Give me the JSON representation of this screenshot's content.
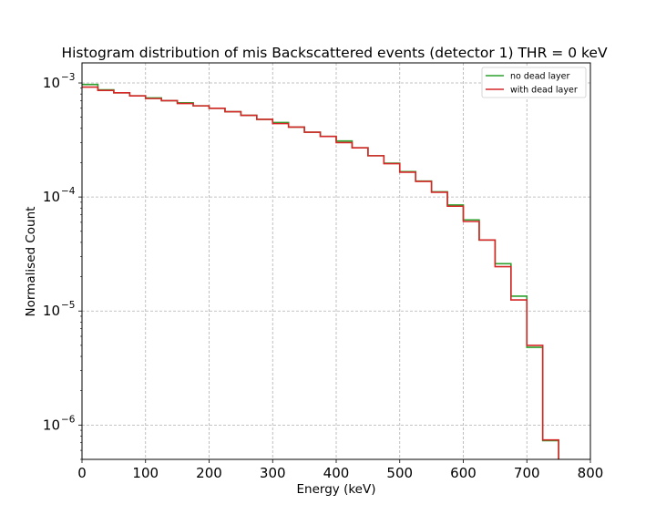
{
  "chart_data": {
    "type": "line",
    "title": "Histogram distribution of mis Backscattered events (detector 1) THR = 0 keV",
    "xlabel": "Energy (keV)",
    "ylabel": "Normalised Count",
    "xlim": [
      0,
      800
    ],
    "ylim": [
      5e-07,
      0.0015
    ],
    "yscale": "log",
    "grid": true,
    "legend_position": "top-right",
    "x_ticks": [
      0,
      100,
      200,
      300,
      400,
      500,
      600,
      700,
      800
    ],
    "x_tick_labels": [
      "0",
      "100",
      "200",
      "300",
      "400",
      "500",
      "600",
      "700",
      "800"
    ],
    "y_ticks": [
      1e-06,
      1e-05,
      0.0001,
      0.001
    ],
    "y_tick_labels": [
      {
        "base": "10",
        "exp": "−6"
      },
      {
        "base": "10",
        "exp": "−5"
      },
      {
        "base": "10",
        "exp": "−4"
      },
      {
        "base": "10",
        "exp": "−3"
      }
    ],
    "bin_edges": [
      0,
      25,
      50,
      75,
      100,
      125,
      150,
      175,
      200,
      225,
      250,
      275,
      300,
      325,
      350,
      375,
      400,
      425,
      450,
      475,
      500,
      525,
      550,
      575,
      600,
      625,
      650,
      675,
      700,
      725,
      750
    ],
    "series": [
      {
        "name": "no dead layer",
        "color": "#2ca02c",
        "values": [
          0.00097,
          0.00087,
          0.00082,
          0.00077,
          0.00074,
          0.0007,
          0.00067,
          0.00063,
          0.0006,
          0.00056,
          0.00052,
          0.00048,
          0.00045,
          0.00041,
          0.00037,
          0.00034,
          0.00031,
          0.00027,
          0.00023,
          0.000198,
          0.000167,
          0.000138,
          0.000111,
          8.5e-05,
          6.3e-05,
          4.2e-05,
          2.6e-05,
          1.35e-05,
          4.8e-06,
          7.3e-07
        ]
      },
      {
        "name": "with dead layer",
        "color": "#d62728",
        "values": [
          0.00092,
          0.00086,
          0.00082,
          0.00077,
          0.00073,
          0.0007,
          0.00066,
          0.00063,
          0.0006,
          0.00056,
          0.00052,
          0.00048,
          0.00044,
          0.00041,
          0.00037,
          0.00034,
          0.0003,
          0.00027,
          0.00023,
          0.000196,
          0.000165,
          0.000137,
          0.00011,
          8.3e-05,
          6.1e-05,
          4.2e-05,
          2.45e-05,
          1.25e-05,
          5e-06,
          7.4e-07
        ]
      }
    ]
  }
}
